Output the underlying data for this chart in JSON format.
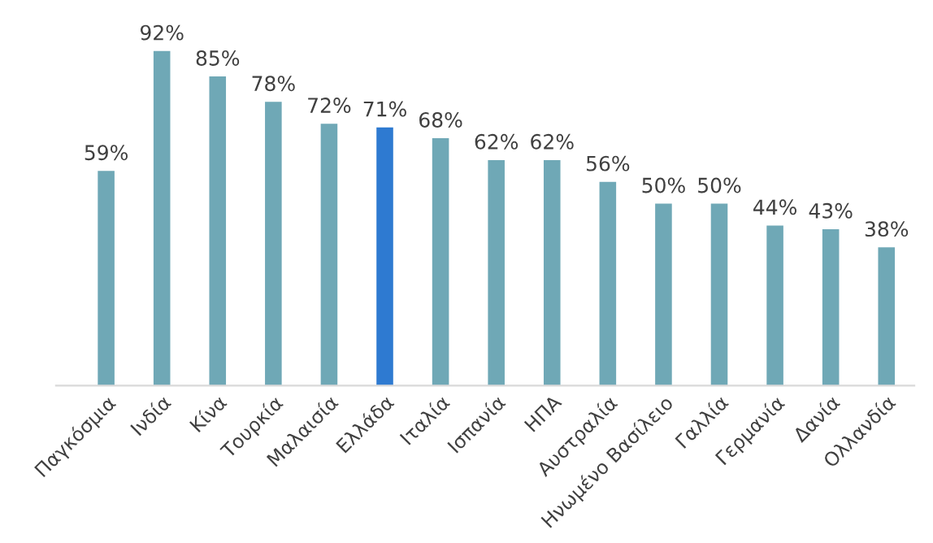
{
  "chart_data": {
    "type": "bar",
    "categories": [
      "Παγκόσμια",
      "Ινδία",
      "Κίνα",
      "Τουρκία",
      "Μαλαισία",
      "Ελλάδα",
      "Ιταλία",
      "Ισπανία",
      "ΗΠΑ",
      "Αυστραλία",
      "Ηνωμένο Βασίλειο",
      "Γαλλία",
      "Γερμανία",
      "Δανία",
      "Ολλανδία"
    ],
    "values": [
      59,
      92,
      85,
      78,
      72,
      71,
      68,
      62,
      62,
      56,
      50,
      50,
      44,
      43,
      38
    ],
    "value_labels": [
      "59%",
      "92%",
      "85%",
      "78%",
      "72%",
      "71%",
      "68%",
      "62%",
      "62%",
      "56%",
      "50%",
      "50%",
      "44%",
      "43%",
      "38%"
    ],
    "colors": [
      "#6fa8b6",
      "#6fa8b6",
      "#6fa8b6",
      "#6fa8b6",
      "#6fa8b6",
      "#2e7ad1",
      "#6fa8b6",
      "#6fa8b6",
      "#6fa8b6",
      "#6fa8b6",
      "#6fa8b6",
      "#6fa8b6",
      "#6fa8b6",
      "#6fa8b6",
      "#6fa8b6"
    ],
    "grid": false,
    "legend": false
  }
}
